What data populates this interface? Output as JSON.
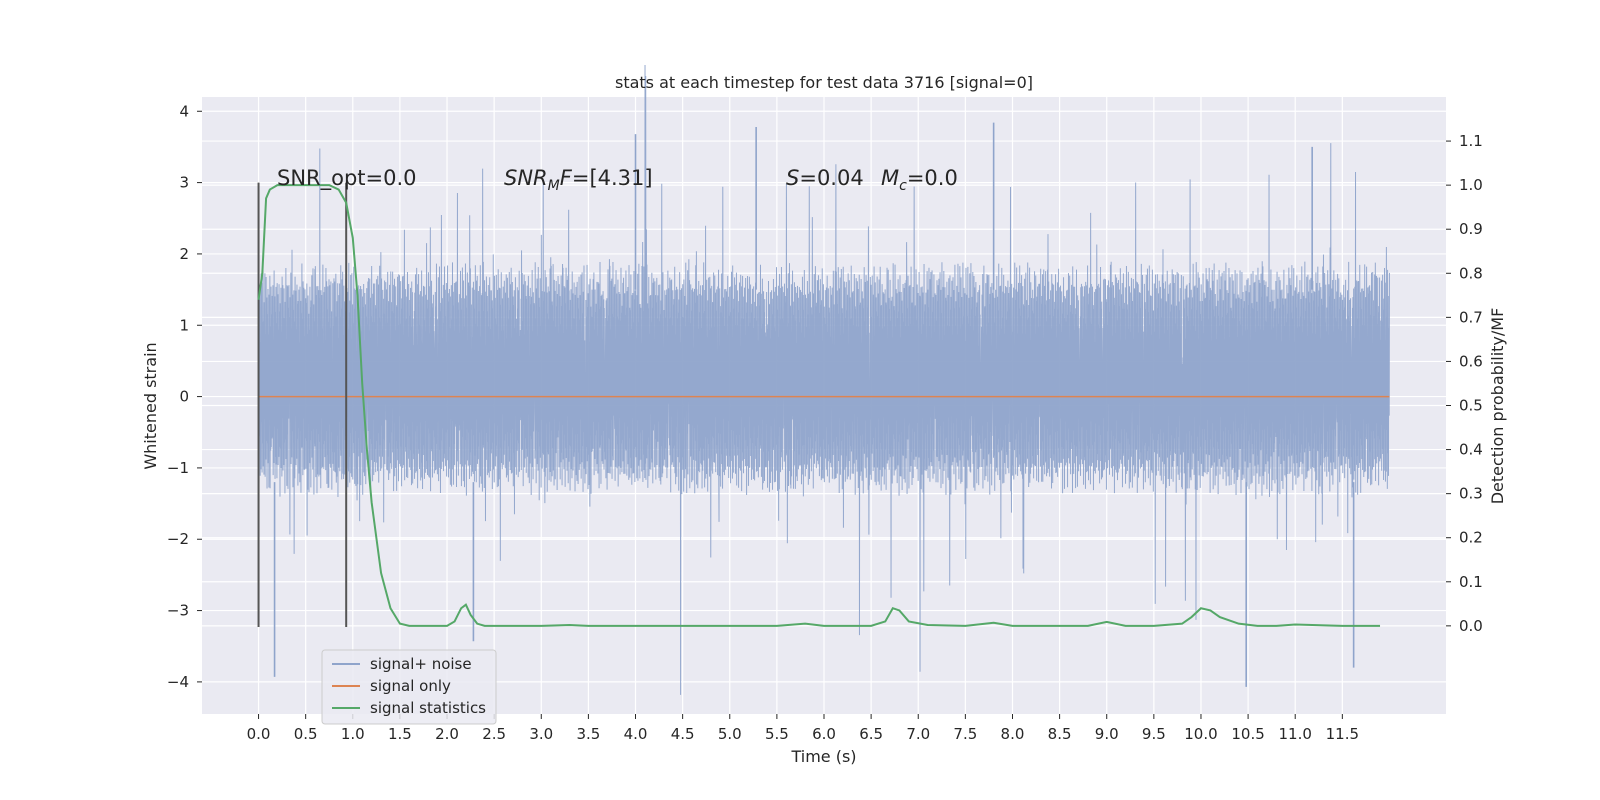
{
  "chart_data": {
    "type": "line",
    "title": "stats at each timestep for test data 3716 [signal=0]",
    "xlabel": "Time (s)",
    "ylabel_left": "Whitened strain",
    "ylabel_right": "Detection probability/MF",
    "xlim": [
      -0.6,
      12.6
    ],
    "ylim_left": [
      -4.45,
      4.2
    ],
    "ylim_right": [
      -0.2,
      1.2
    ],
    "x_ticks": [
      "0.0",
      "0.5",
      "1.0",
      "1.5",
      "2.0",
      "2.5",
      "3.0",
      "3.5",
      "4.0",
      "4.5",
      "5.0",
      "5.5",
      "6.0",
      "6.5",
      "7.0",
      "7.5",
      "8.0",
      "8.5",
      "9.0",
      "9.5",
      "10.0",
      "10.5",
      "11.0",
      "11.5"
    ],
    "y_ticks_left": [
      "4",
      "3",
      "2",
      "1",
      "0",
      "−1",
      "−2",
      "−3",
      "−4"
    ],
    "y_ticks_right": [
      "1.1",
      "1.0",
      "0.9",
      "0.8",
      "0.7",
      "0.6",
      "0.5",
      "0.4",
      "0.3",
      "0.2",
      "0.1",
      "0.0"
    ],
    "grid": true,
    "legend_position": "lower-left",
    "colors": {
      "background": "#eaeaf2",
      "grid": "#ffffff",
      "noise": "#8fa4cb",
      "signal": "#dd8452",
      "stats": "#55a868",
      "vline": "#555555"
    },
    "series": [
      {
        "name": "signal+ noise",
        "axis": "left",
        "style": "dense noise trace",
        "x_range": [
          0.0,
          12.0
        ],
        "typical_envelope": [
          -1.4,
          1.9
        ],
        "notable_peaks": [
          {
            "x": 0.17,
            "y": -3.93
          },
          {
            "x": 4.0,
            "y": 3.68
          },
          {
            "x": 5.28,
            "y": 3.78
          },
          {
            "x": 7.8,
            "y": 3.84
          },
          {
            "x": 10.48,
            "y": -4.07
          },
          {
            "x": 11.18,
            "y": 3.5
          },
          {
            "x": 11.62,
            "y": -3.8
          },
          {
            "x": 2.28,
            "y": -3.43
          }
        ]
      },
      {
        "name": "signal only",
        "axis": "left",
        "x": [
          0.0,
          12.0
        ],
        "y": [
          0.0,
          0.0
        ]
      },
      {
        "name": "signal statistics",
        "axis": "right",
        "x": [
          0.0,
          0.04,
          0.08,
          0.12,
          0.2,
          0.3,
          0.4,
          0.6,
          0.75,
          0.85,
          0.93,
          1.0,
          1.05,
          1.1,
          1.15,
          1.2,
          1.3,
          1.4,
          1.5,
          1.6,
          1.8,
          2.0,
          2.08,
          2.15,
          2.2,
          2.25,
          2.32,
          2.4,
          2.6,
          3.0,
          3.3,
          3.5,
          4.0,
          5.0,
          5.5,
          5.8,
          6.0,
          6.5,
          6.65,
          6.73,
          6.8,
          6.9,
          7.1,
          7.5,
          7.8,
          8.0,
          8.5,
          8.8,
          9.0,
          9.2,
          9.5,
          9.8,
          9.9,
          10.0,
          10.1,
          10.2,
          10.4,
          10.6,
          10.8,
          11.0,
          11.5,
          11.9
        ],
        "y": [
          0.74,
          0.8,
          0.97,
          0.99,
          1.0,
          1.0,
          1.0,
          1.0,
          1.0,
          0.99,
          0.96,
          0.88,
          0.75,
          0.55,
          0.4,
          0.28,
          0.12,
          0.04,
          0.005,
          0.0,
          0.0,
          0.0,
          0.01,
          0.04,
          0.048,
          0.025,
          0.005,
          0.0,
          0.0,
          0.0,
          0.002,
          0.0,
          0.0,
          0.0,
          0.0,
          0.005,
          0.0,
          0.0,
          0.01,
          0.04,
          0.035,
          0.01,
          0.002,
          0.0,
          0.007,
          0.0,
          0.0,
          0.0,
          0.009,
          0.0,
          0.0,
          0.005,
          0.02,
          0.04,
          0.035,
          0.02,
          0.005,
          0.0,
          0.0,
          0.003,
          0.0,
          0.0
        ]
      }
    ],
    "vertical_lines": [
      {
        "x": 0.0,
        "y_range": [
          -3.23,
          3.0
        ]
      },
      {
        "x": 0.93,
        "y_range": [
          -3.23,
          3.0
        ]
      }
    ],
    "annotations": {
      "snr_opt": "SNR_opt=0.0",
      "snr_mf": "[4.31]",
      "s_value": "=0.04",
      "mc_value": "=0.0"
    }
  }
}
